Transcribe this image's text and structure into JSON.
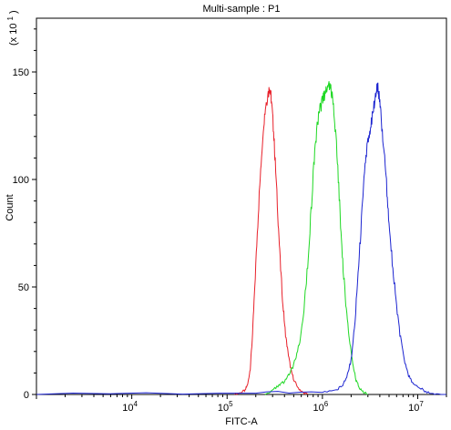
{
  "chart_data": {
    "type": "line",
    "title": "Multi-sample : P1",
    "xlabel": "FITC-A",
    "ylabel": "Count",
    "y_multiplier_label": "(x 10",
    "y_multiplier_exp": "1",
    "x_scale": "log",
    "xlim": [
      1000,
      20000000
    ],
    "ylim": [
      0,
      175
    ],
    "grid": false,
    "x_major_ticks": [
      {
        "value": 10000,
        "base": "10",
        "exp": "4"
      },
      {
        "value": 100000,
        "base": "10",
        "exp": "5"
      },
      {
        "value": 1000000,
        "base": "10",
        "exp": "6"
      },
      {
        "value": 10000000,
        "base": "10",
        "exp": "7"
      }
    ],
    "y_ticks": [
      0,
      50,
      100,
      150
    ],
    "series": [
      {
        "color": "#e8202a",
        "points": [
          [
            120000,
            0
          ],
          [
            140000,
            1
          ],
          [
            155000,
            2
          ],
          [
            165000,
            5
          ],
          [
            175000,
            12
          ],
          [
            185000,
            28
          ],
          [
            195000,
            50
          ],
          [
            210000,
            80
          ],
          [
            225000,
            105
          ],
          [
            240000,
            125
          ],
          [
            255000,
            135
          ],
          [
            270000,
            140
          ],
          [
            280000,
            143
          ],
          [
            290000,
            138
          ],
          [
            305000,
            125
          ],
          [
            320000,
            108
          ],
          [
            340000,
            85
          ],
          [
            360000,
            62
          ],
          [
            385000,
            42
          ],
          [
            410000,
            28
          ],
          [
            440000,
            18
          ],
          [
            470000,
            11
          ],
          [
            510000,
            6
          ],
          [
            560000,
            3
          ],
          [
            620000,
            1
          ],
          [
            700000,
            0
          ]
        ]
      },
      {
        "color": "#1fd824",
        "points": [
          [
            250000,
            0
          ],
          [
            300000,
            2
          ],
          [
            350000,
            4
          ],
          [
            400000,
            6
          ],
          [
            460000,
            10
          ],
          [
            520000,
            16
          ],
          [
            580000,
            25
          ],
          [
            640000,
            40
          ],
          [
            700000,
            60
          ],
          [
            760000,
            85
          ],
          [
            820000,
            110
          ],
          [
            880000,
            125
          ],
          [
            940000,
            132
          ],
          [
            1000000,
            137
          ],
          [
            1060000,
            140
          ],
          [
            1120000,
            143
          ],
          [
            1200000,
            144
          ],
          [
            1280000,
            138
          ],
          [
            1360000,
            125
          ],
          [
            1450000,
            105
          ],
          [
            1550000,
            80
          ],
          [
            1650000,
            58
          ],
          [
            1780000,
            40
          ],
          [
            1920000,
            25
          ],
          [
            2080000,
            14
          ],
          [
            2250000,
            7
          ],
          [
            2450000,
            3
          ],
          [
            2700000,
            1
          ],
          [
            3000000,
            0
          ]
        ]
      },
      {
        "color": "#1c24d0",
        "points": [
          [
            1000,
            0
          ],
          [
            200000,
            1
          ],
          [
            1000000,
            1
          ],
          [
            1400000,
            2
          ],
          [
            1600000,
            4
          ],
          [
            1800000,
            8
          ],
          [
            2000000,
            16
          ],
          [
            2200000,
            35
          ],
          [
            2400000,
            60
          ],
          [
            2600000,
            85
          ],
          [
            2800000,
            105
          ],
          [
            3000000,
            118
          ],
          [
            3200000,
            125
          ],
          [
            3400000,
            132
          ],
          [
            3600000,
            138
          ],
          [
            3750000,
            144
          ],
          [
            3900000,
            140
          ],
          [
            4100000,
            130
          ],
          [
            4400000,
            115
          ],
          [
            4700000,
            98
          ],
          [
            5000000,
            80
          ],
          [
            5400000,
            62
          ],
          [
            5900000,
            44
          ],
          [
            6500000,
            28
          ],
          [
            7200000,
            16
          ],
          [
            8000000,
            9
          ],
          [
            9000000,
            5
          ],
          [
            10500000,
            3
          ],
          [
            12500000,
            1
          ],
          [
            15000000,
            0
          ],
          [
            20000000,
            0
          ]
        ]
      }
    ]
  }
}
